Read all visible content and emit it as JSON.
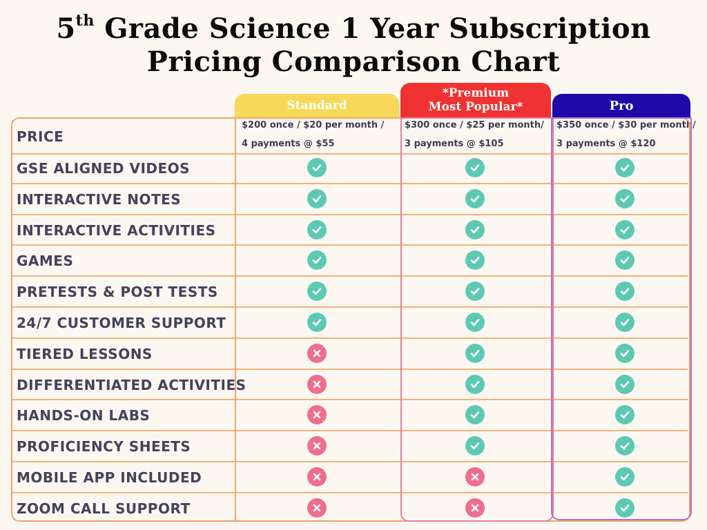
{
  "title": {
    "line1_number": "5",
    "line1_superscript": "th",
    "line1_rest": " Grade Science 1 Year Subscription",
    "line2": "Pricing Comparison Chart"
  },
  "plans": [
    {
      "id": "standard",
      "label": "Standard",
      "color": "#f7d858"
    },
    {
      "id": "premium",
      "label_line1": "*Premium",
      "label_line2": "Most Popular*",
      "color": "#f03232"
    },
    {
      "id": "pro",
      "label": "Pro",
      "color": "#1d0aa8"
    }
  ],
  "price_row": {
    "label": "Price",
    "standard": [
      "$200 once / $20 per month /",
      "4 payments @ $55"
    ],
    "premium": [
      "$300 once / $25 per month/",
      "3 payments @ $105"
    ],
    "pro": [
      "$350 once / $30 per month/",
      "3 payments @ $120"
    ]
  },
  "features": [
    {
      "label": "GSE Aligned Videos",
      "standard": "check",
      "premium": "check",
      "pro": "check"
    },
    {
      "label": "Interactive Notes",
      "standard": "check",
      "premium": "check",
      "pro": "check"
    },
    {
      "label": "Interactive Activities",
      "standard": "check",
      "premium": "check",
      "pro": "check"
    },
    {
      "label": "Games",
      "standard": "check",
      "premium": "check",
      "pro": "check"
    },
    {
      "label": "Pretests & Post Tests",
      "standard": "check",
      "premium": "check",
      "pro": "check"
    },
    {
      "label": "24/7 Customer Support",
      "standard": "check",
      "premium": "check",
      "pro": "check"
    },
    {
      "label": "Tiered Lessons",
      "standard": "cross",
      "premium": "check",
      "pro": "check"
    },
    {
      "label": "Differentiated Activities",
      "standard": "cross",
      "premium": "check",
      "pro": "check"
    },
    {
      "label": "Hands-On Labs",
      "standard": "cross",
      "premium": "check",
      "pro": "check"
    },
    {
      "label": "Proficiency Sheets",
      "standard": "cross",
      "premium": "check",
      "pro": "check"
    },
    {
      "label": "Mobile App Included",
      "standard": "cross",
      "premium": "cross",
      "pro": "check"
    },
    {
      "label": "Zoom Call Support",
      "standard": "cross",
      "premium": "cross",
      "pro": "check"
    }
  ],
  "colors": {
    "check": "#5ec9b2",
    "cross": "#ee6f8d",
    "label_text": "#45415e",
    "row_border": "#f5b077",
    "background": "#fcf8f1"
  }
}
